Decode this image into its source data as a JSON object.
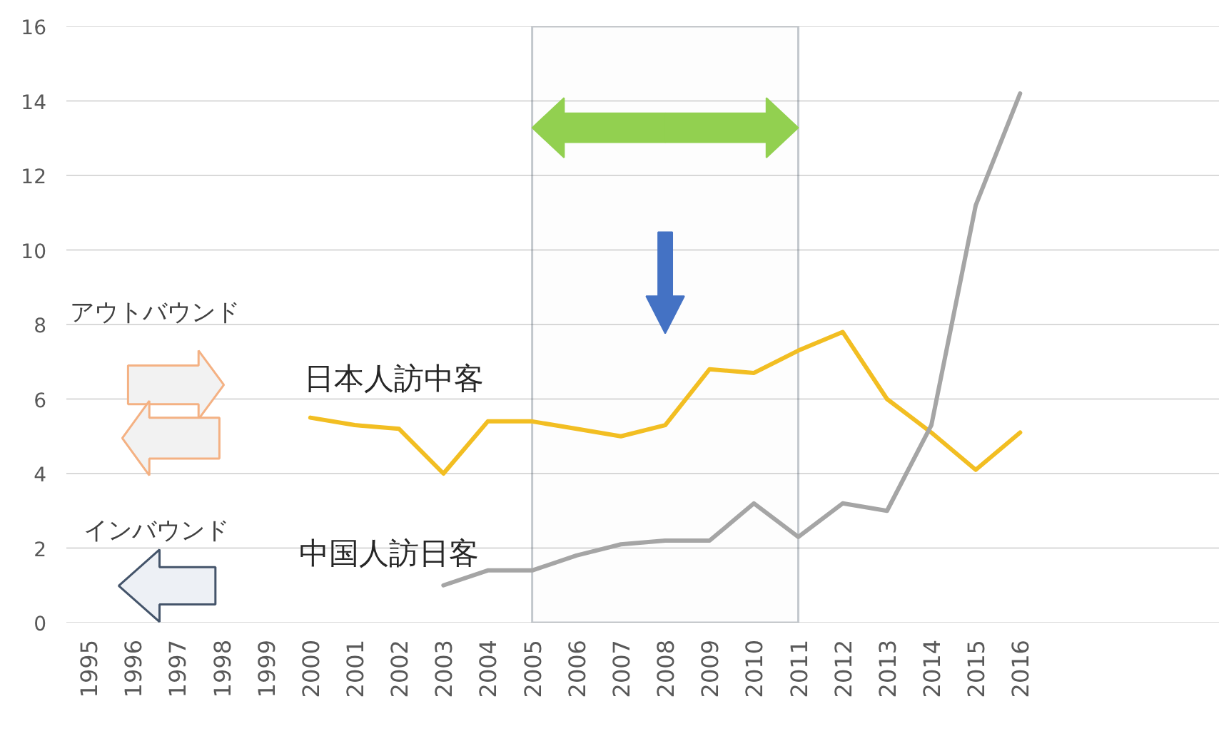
{
  "chart_data": {
    "type": "line",
    "categories": [
      "1995",
      "1996",
      "1997",
      "1998",
      "1999",
      "2000",
      "2001",
      "2002",
      "2003",
      "2004",
      "2005",
      "2006",
      "2007",
      "2008",
      "2009",
      "2010",
      "2011",
      "2012",
      "2013",
      "2014",
      "2015",
      "2016",
      null,
      null,
      null,
      null
    ],
    "series": [
      {
        "name": "日本人訪中客",
        "color": "#f2be22",
        "values": [
          null,
          null,
          null,
          null,
          null,
          5.5,
          5.3,
          5.2,
          4.0,
          5.4,
          5.4,
          5.2,
          5.0,
          5.3,
          6.8,
          6.7,
          7.3,
          7.8,
          6.0,
          5.1,
          4.1,
          5.1,
          null,
          null,
          null,
          null
        ]
      },
      {
        "name": "中国人訪日客",
        "color": "#a5a5a5",
        "values": [
          null,
          null,
          null,
          null,
          null,
          null,
          null,
          null,
          1.0,
          1.4,
          1.4,
          1.8,
          2.1,
          2.2,
          2.2,
          3.2,
          2.3,
          3.2,
          3.0,
          5.3,
          11.2,
          14.2,
          null,
          null,
          null,
          null
        ]
      }
    ],
    "ylim": [
      0,
      16
    ],
    "yticks": [
      0,
      2,
      4,
      6,
      8,
      10,
      12,
      14,
      16
    ],
    "grid": "y",
    "bands": [
      {
        "axis": "x",
        "from": "2005",
        "to": "2011",
        "color": "#3d4b5c"
      }
    ],
    "annotations": [
      "アウトバウンド",
      "インバウンド"
    ]
  }
}
